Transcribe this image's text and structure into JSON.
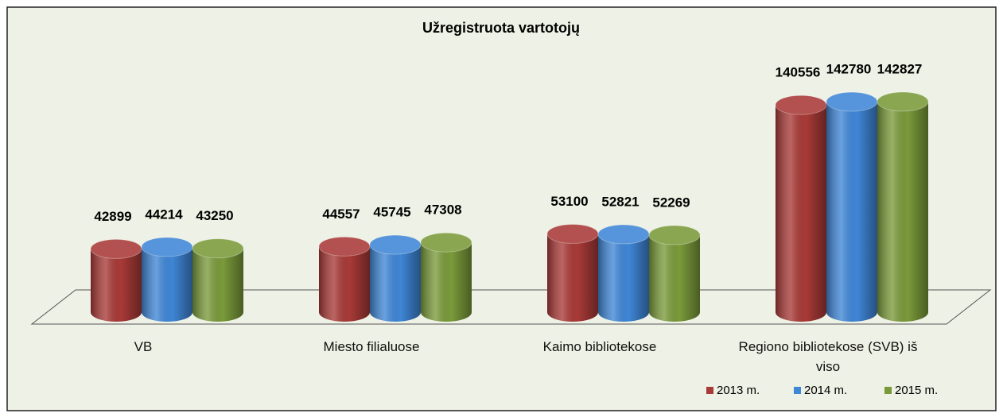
{
  "chart_data": {
    "type": "bar3d-cylinder",
    "title": "Užregistruota vartotojų",
    "categories": [
      "VB",
      "Miesto filialuose",
      "Kaimo bibliotekose",
      "Regiono bibliotekose (SVB) iš viso"
    ],
    "series": [
      {
        "name": "2013 m.",
        "color": "#a83a37",
        "values": [
          42899,
          44557,
          53100,
          140556
        ]
      },
      {
        "name": "2014 m.",
        "color": "#3f86d6",
        "values": [
          44214,
          45745,
          52821,
          142780
        ]
      },
      {
        "name": "2015 m.",
        "color": "#7a9a3a",
        "values": [
          43250,
          47308,
          52269,
          142827
        ]
      }
    ],
    "legend": "bottom-right"
  }
}
